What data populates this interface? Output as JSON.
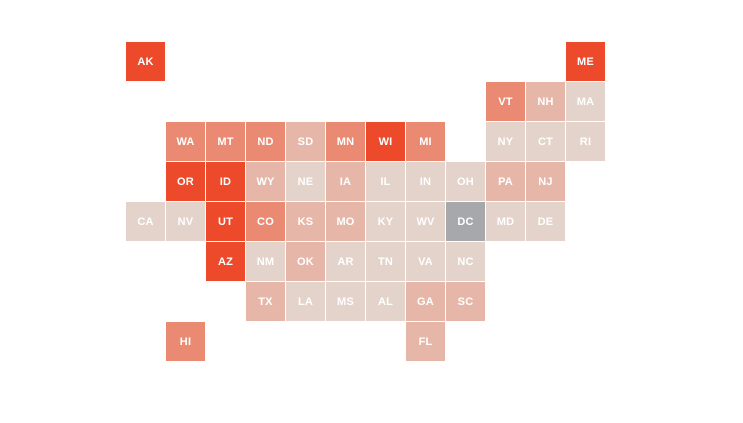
{
  "map": {
    "type": "us-state-tile-grid",
    "palette": {
      "l0": "#e4d3cb",
      "l1": "#e6b7a9",
      "l2": "#e9a291",
      "l3": "#ea8a72",
      "l4": "#ec6b4d",
      "l5": "#ec4a2b",
      "no_data": "#a6a8ab"
    },
    "states": [
      {
        "abbr": "AK",
        "row": 0,
        "col": 0,
        "level": "l5"
      },
      {
        "abbr": "ME",
        "row": 0,
        "col": 11,
        "level": "l5"
      },
      {
        "abbr": "VT",
        "row": 1,
        "col": 9,
        "level": "l3"
      },
      {
        "abbr": "NH",
        "row": 1,
        "col": 10,
        "level": "l1"
      },
      {
        "abbr": "MA",
        "row": 1,
        "col": 11,
        "level": "l0"
      },
      {
        "abbr": "WA",
        "row": 2,
        "col": 1,
        "level": "l3"
      },
      {
        "abbr": "MT",
        "row": 2,
        "col": 2,
        "level": "l3"
      },
      {
        "abbr": "ND",
        "row": 2,
        "col": 3,
        "level": "l3"
      },
      {
        "abbr": "SD",
        "row": 2,
        "col": 4,
        "level": "l1"
      },
      {
        "abbr": "MN",
        "row": 2,
        "col": 5,
        "level": "l3"
      },
      {
        "abbr": "WI",
        "row": 2,
        "col": 6,
        "level": "l5"
      },
      {
        "abbr": "MI",
        "row": 2,
        "col": 7,
        "level": "l3"
      },
      {
        "abbr": "NY",
        "row": 2,
        "col": 9,
        "level": "l0"
      },
      {
        "abbr": "CT",
        "row": 2,
        "col": 10,
        "level": "l0"
      },
      {
        "abbr": "RI",
        "row": 2,
        "col": 11,
        "level": "l0"
      },
      {
        "abbr": "OR",
        "row": 3,
        "col": 1,
        "level": "l5"
      },
      {
        "abbr": "ID",
        "row": 3,
        "col": 2,
        "level": "l5"
      },
      {
        "abbr": "WY",
        "row": 3,
        "col": 3,
        "level": "l1"
      },
      {
        "abbr": "NE",
        "row": 3,
        "col": 4,
        "level": "l0"
      },
      {
        "abbr": "IA",
        "row": 3,
        "col": 5,
        "level": "l1"
      },
      {
        "abbr": "IL",
        "row": 3,
        "col": 6,
        "level": "l0"
      },
      {
        "abbr": "IN",
        "row": 3,
        "col": 7,
        "level": "l0"
      },
      {
        "abbr": "OH",
        "row": 3,
        "col": 8,
        "level": "l0"
      },
      {
        "abbr": "PA",
        "row": 3,
        "col": 9,
        "level": "l1"
      },
      {
        "abbr": "NJ",
        "row": 3,
        "col": 10,
        "level": "l1"
      },
      {
        "abbr": "CA",
        "row": 4,
        "col": 0,
        "level": "l0"
      },
      {
        "abbr": "NV",
        "row": 4,
        "col": 1,
        "level": "l0"
      },
      {
        "abbr": "UT",
        "row": 4,
        "col": 2,
        "level": "l5"
      },
      {
        "abbr": "CO",
        "row": 4,
        "col": 3,
        "level": "l3"
      },
      {
        "abbr": "KS",
        "row": 4,
        "col": 4,
        "level": "l1"
      },
      {
        "abbr": "MO",
        "row": 4,
        "col": 5,
        "level": "l1"
      },
      {
        "abbr": "KY",
        "row": 4,
        "col": 6,
        "level": "l0"
      },
      {
        "abbr": "WV",
        "row": 4,
        "col": 7,
        "level": "l0"
      },
      {
        "abbr": "DC",
        "row": 4,
        "col": 8,
        "level": "no_data"
      },
      {
        "abbr": "MD",
        "row": 4,
        "col": 9,
        "level": "l0"
      },
      {
        "abbr": "DE",
        "row": 4,
        "col": 10,
        "level": "l0"
      },
      {
        "abbr": "AZ",
        "row": 5,
        "col": 2,
        "level": "l5"
      },
      {
        "abbr": "NM",
        "row": 5,
        "col": 3,
        "level": "l0"
      },
      {
        "abbr": "OK",
        "row": 5,
        "col": 4,
        "level": "l1"
      },
      {
        "abbr": "AR",
        "row": 5,
        "col": 5,
        "level": "l0"
      },
      {
        "abbr": "TN",
        "row": 5,
        "col": 6,
        "level": "l0"
      },
      {
        "abbr": "VA",
        "row": 5,
        "col": 7,
        "level": "l0"
      },
      {
        "abbr": "NC",
        "row": 5,
        "col": 8,
        "level": "l0"
      },
      {
        "abbr": "TX",
        "row": 6,
        "col": 3,
        "level": "l1"
      },
      {
        "abbr": "LA",
        "row": 6,
        "col": 4,
        "level": "l0"
      },
      {
        "abbr": "MS",
        "row": 6,
        "col": 5,
        "level": "l0"
      },
      {
        "abbr": "AL",
        "row": 6,
        "col": 6,
        "level": "l0"
      },
      {
        "abbr": "GA",
        "row": 6,
        "col": 7,
        "level": "l1"
      },
      {
        "abbr": "SC",
        "row": 6,
        "col": 8,
        "level": "l1"
      },
      {
        "abbr": "HI",
        "row": 7,
        "col": 1,
        "level": "l3"
      },
      {
        "abbr": "FL",
        "row": 7,
        "col": 7,
        "level": "l1"
      }
    ]
  }
}
